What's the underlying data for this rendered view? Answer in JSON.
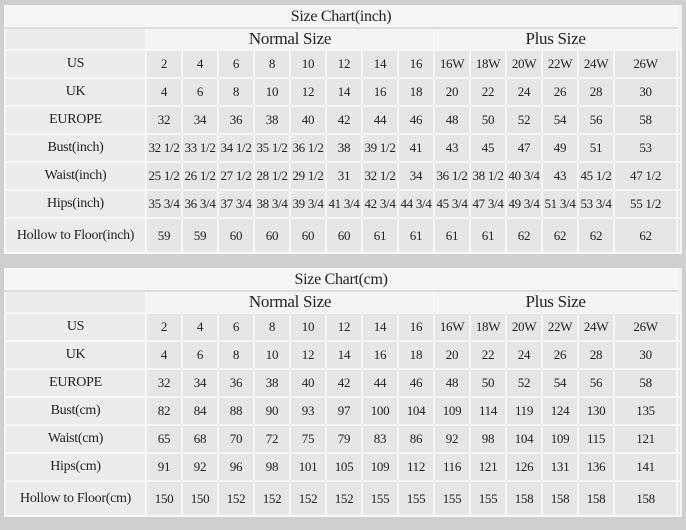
{
  "colors": {
    "background": "#cfcfcf",
    "cell": "#e6e6e6",
    "border": "#f7f7f7"
  },
  "group_labels": {
    "normal": "Normal Size",
    "plus": "Plus Size"
  },
  "charts": [
    {
      "title": "Size Chart(inch)",
      "rows": [
        {
          "label": "US",
          "values": [
            "2",
            "4",
            "6",
            "8",
            "10",
            "12",
            "14",
            "16",
            "16W",
            "18W",
            "20W",
            "22W",
            "24W",
            "26W"
          ]
        },
        {
          "label": "UK",
          "values": [
            "4",
            "6",
            "8",
            "10",
            "12",
            "14",
            "16",
            "18",
            "20",
            "22",
            "24",
            "26",
            "28",
            "30"
          ]
        },
        {
          "label": "EUROPE",
          "values": [
            "32",
            "34",
            "36",
            "38",
            "40",
            "42",
            "44",
            "46",
            "48",
            "50",
            "52",
            "54",
            "56",
            "58"
          ]
        },
        {
          "label": "Bust(inch)",
          "values": [
            "32 1/2",
            "33 1/2",
            "34 1/2",
            "35 1/2",
            "36 1/2",
            "38",
            "39 1/2",
            "41",
            "43",
            "45",
            "47",
            "49",
            "51",
            "53"
          ]
        },
        {
          "label": "Waist(inch)",
          "values": [
            "25 1/2",
            "26 1/2",
            "27 1/2",
            "28 1/2",
            "29 1/2",
            "31",
            "32 1/2",
            "34",
            "36 1/2",
            "38 1/2",
            "40 3/4",
            "43",
            "45 1/2",
            "47 1/2"
          ]
        },
        {
          "label": "Hips(inch)",
          "values": [
            "35 3/4",
            "36 3/4",
            "37 3/4",
            "38 3/4",
            "39 3/4",
            "41 3/4",
            "42 3/4",
            "44 3/4",
            "45 3/4",
            "47 3/4",
            "49 3/4",
            "51 3/4",
            "53 3/4",
            "55 1/2"
          ]
        },
        {
          "label": "Hollow to Floor(inch)",
          "values": [
            "59",
            "59",
            "60",
            "60",
            "60",
            "60",
            "61",
            "61",
            "61",
            "61",
            "62",
            "62",
            "62",
            "62"
          ]
        }
      ]
    },
    {
      "title": "Size Chart(cm)",
      "rows": [
        {
          "label": "US",
          "values": [
            "2",
            "4",
            "6",
            "8",
            "10",
            "12",
            "14",
            "16",
            "16W",
            "18W",
            "20W",
            "22W",
            "24W",
            "26W"
          ]
        },
        {
          "label": "UK",
          "values": [
            "4",
            "6",
            "8",
            "10",
            "12",
            "14",
            "16",
            "18",
            "20",
            "22",
            "24",
            "26",
            "28",
            "30"
          ]
        },
        {
          "label": "EUROPE",
          "values": [
            "32",
            "34",
            "36",
            "38",
            "40",
            "42",
            "44",
            "46",
            "48",
            "50",
            "52",
            "54",
            "56",
            "58"
          ]
        },
        {
          "label": "Bust(cm)",
          "values": [
            "82",
            "84",
            "88",
            "90",
            "93",
            "97",
            "100",
            "104",
            "109",
            "114",
            "119",
            "124",
            "130",
            "135"
          ]
        },
        {
          "label": "Waist(cm)",
          "values": [
            "65",
            "68",
            "70",
            "72",
            "75",
            "79",
            "83",
            "86",
            "92",
            "98",
            "104",
            "109",
            "115",
            "121"
          ]
        },
        {
          "label": "Hips(cm)",
          "values": [
            "91",
            "92",
            "96",
            "98",
            "101",
            "105",
            "109",
            "112",
            "116",
            "121",
            "126",
            "131",
            "136",
            "141"
          ]
        },
        {
          "label": "Hollow to Floor(cm)",
          "values": [
            "150",
            "150",
            "152",
            "152",
            "152",
            "152",
            "155",
            "155",
            "155",
            "155",
            "158",
            "158",
            "158",
            "158"
          ]
        }
      ]
    }
  ]
}
